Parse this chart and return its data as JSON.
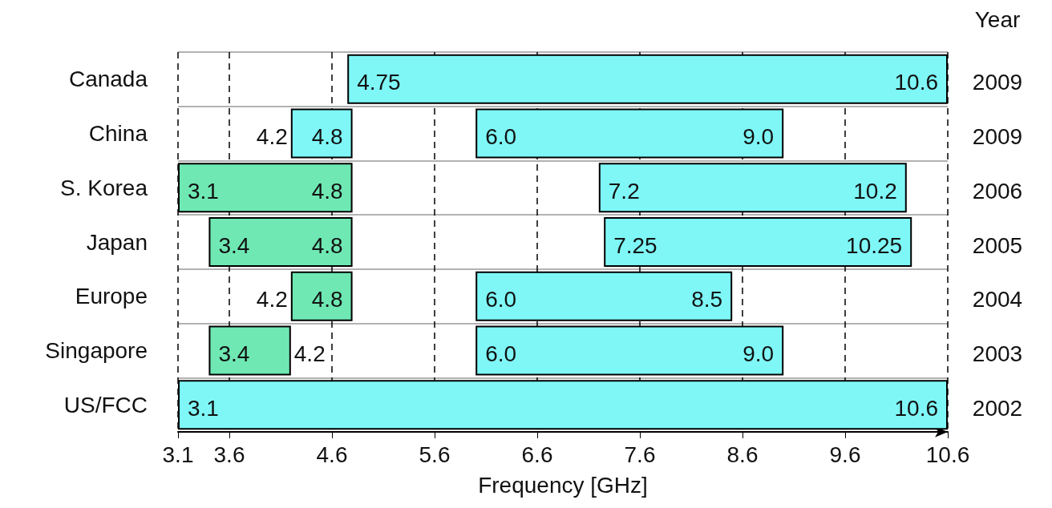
{
  "chart_data": {
    "type": "bar",
    "orientation": "horizontal",
    "xlabel": "Frequency [GHz]",
    "categories": [
      "Canada",
      "China",
      "S. Korea",
      "Japan",
      "Europe",
      "Singapore",
      "US/FCC"
    ],
    "series": [
      {
        "values": [
          null,
          0.6,
          1.7,
          1.4,
          0.6,
          0.8,
          null
        ],
        "base": [
          null,
          4.2,
          3.1,
          3.4,
          4.2,
          3.4,
          null
        ],
        "colors": [
          null,
          "#7ff7f7",
          "#6fe8b4",
          "#6fe8b4",
          "#6fe8b4",
          "#6fe8b4",
          null
        ]
      },
      {
        "values": [
          5.85,
          3.0,
          3.0,
          3.0,
          2.5,
          3.0,
          7.5
        ],
        "base": [
          4.75,
          6.0,
          7.2,
          7.25,
          6.0,
          6.0,
          3.1
        ],
        "color": "#7ff7f7"
      }
    ],
    "xlim": [
      3.1,
      10.6
    ],
    "xticks": [
      3.1,
      3.6,
      4.6,
      5.6,
      6.6,
      7.6,
      8.6,
      9.6,
      10.6
    ],
    "grid": true,
    "annotations": [
      "Year",
      {
        "text": "4.75",
        "x": 4.75,
        "y": "Canada"
      },
      {
        "text": "10.6",
        "x": 10.6,
        "y": "Canada"
      },
      {
        "text": "4.2",
        "x": 4.2,
        "y": "China"
      },
      {
        "text": "4.8",
        "x": 4.8,
        "y": "China"
      },
      {
        "text": "6.0",
        "x": 6.0,
        "y": "China"
      },
      {
        "text": "9.0",
        "x": 9.0,
        "y": "China"
      },
      {
        "text": "3.1",
        "x": 3.1,
        "y": "S. Korea"
      },
      {
        "text": "4.8",
        "x": 4.8,
        "y": "S. Korea"
      },
      {
        "text": "7.2",
        "x": 7.2,
        "y": "S. Korea"
      },
      {
        "text": "10.2",
        "x": 10.2,
        "y": "S. Korea"
      },
      {
        "text": "3.4",
        "x": 3.4,
        "y": "Japan"
      },
      {
        "text": "4.8",
        "x": 4.8,
        "y": "Japan"
      },
      {
        "text": "7.25",
        "x": 7.25,
        "y": "Japan"
      },
      {
        "text": "10.25",
        "x": 10.25,
        "y": "Japan"
      },
      {
        "text": "4.2",
        "x": 4.2,
        "y": "Europe"
      },
      {
        "text": "4.8",
        "x": 4.8,
        "y": "Europe"
      },
      {
        "text": "6.0",
        "x": 6.0,
        "y": "Europe"
      },
      {
        "text": "8.5",
        "x": 8.5,
        "y": "Europe"
      },
      {
        "text": "3.4",
        "x": 3.4,
        "y": "Singapore"
      },
      {
        "text": "4.2",
        "x": 4.2,
        "y": "Singapore"
      },
      {
        "text": "6.0",
        "x": 6.0,
        "y": "Singapore"
      },
      {
        "text": "9.0",
        "x": 9.0,
        "y": "Singapore"
      },
      {
        "text": "3.1",
        "x": 3.1,
        "y": "US/FCC"
      },
      {
        "text": "10.6",
        "x": 10.6,
        "y": "US/FCC"
      },
      "2009",
      "2009",
      "2006",
      "2005",
      "2004",
      "2003",
      "2002"
    ]
  }
}
